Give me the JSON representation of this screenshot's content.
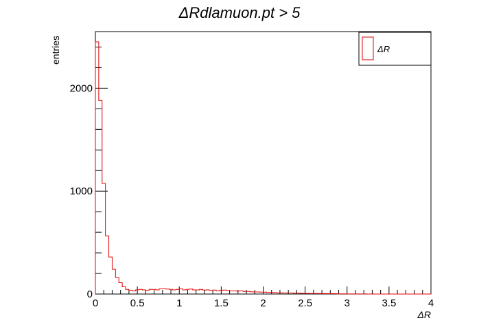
{
  "chart_data": {
    "type": "histogram",
    "title": "ΔRdlamuon.pt > 5",
    "xlabel": "ΔR",
    "ylabel": "entries",
    "xlim": [
      0,
      4
    ],
    "ylim": [
      0,
      2550
    ],
    "bin_width": 0.04,
    "x_ticks": [
      0,
      0.5,
      1,
      1.5,
      2,
      2.5,
      3,
      3.5,
      4
    ],
    "x_tick_labels": [
      "0",
      "0.5",
      "1",
      "1.5",
      "2",
      "2.5",
      "3",
      "3.5",
      "4"
    ],
    "y_ticks": [
      0,
      1000,
      2000
    ],
    "y_tick_labels": [
      "0",
      "1000",
      "2000"
    ],
    "grid": false,
    "legend_position": "top-right",
    "series": [
      {
        "name": "ΔR",
        "color": "#e00000",
        "values": [
          2450,
          1880,
          1075,
          565,
          360,
          240,
          160,
          110,
          70,
          45,
          35,
          30,
          40,
          45,
          40,
          35,
          45,
          45,
          40,
          50,
          50,
          48,
          45,
          40,
          45,
          50,
          40,
          45,
          48,
          40,
          40,
          45,
          38,
          40,
          35,
          38,
          30,
          35,
          38,
          35,
          30,
          30,
          28,
          30,
          25,
          25,
          22,
          20,
          20,
          18,
          18,
          15,
          15,
          14,
          12,
          12,
          10,
          10,
          10,
          8,
          8,
          7,
          6,
          6,
          5,
          5,
          5,
          4,
          4,
          3,
          3,
          3,
          2,
          2,
          2,
          1,
          1,
          1,
          1,
          1,
          1,
          0,
          1,
          0,
          0,
          0,
          0,
          0,
          0,
          0,
          0,
          0,
          0,
          0,
          0,
          0,
          0,
          0,
          0,
          0
        ]
      }
    ]
  }
}
